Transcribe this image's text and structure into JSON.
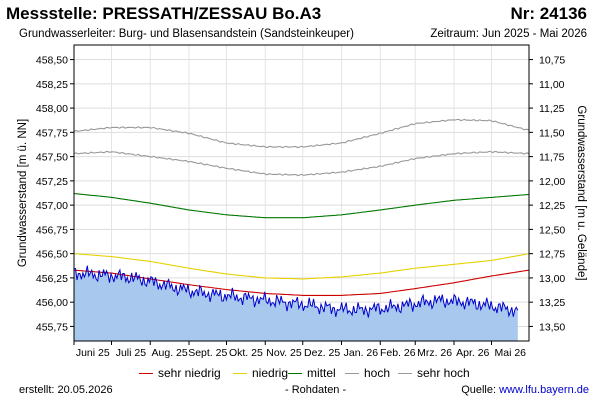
{
  "header": {
    "title": "Messstelle: PRESSATH/ZESSAU Bo.A3",
    "station_nr": "Nr: 24136",
    "aquifer": "Grundwasserleiter:   Burg- und Blasensandstein (Sandsteinkeuper)",
    "period": "Zeitraum: Jun 2025 - Mai 2026"
  },
  "colors": {
    "sehr_niedrig": "#cc0000",
    "niedrig": "#e6d200",
    "mittel": "#007700",
    "hoch": "#999999",
    "sehr_hoch": "#999999",
    "rohdaten": "#0000cc",
    "rohdaten_fill": "#a8c8ee"
  },
  "chart_data": {
    "type": "line",
    "ylabel": "Grundwasserstand [m ü. NN]",
    "ylabel_right": "Grundwasserstand [m u. Gelände]",
    "ylim": [
      455.6,
      458.65
    ],
    "yticks": [
      "458,50",
      "458,25",
      "458,00",
      "457,75",
      "457,50",
      "457,25",
      "457,00",
      "456,75",
      "456,50",
      "456,25",
      "456,00",
      "455,75"
    ],
    "ylim_right": [
      13.65,
      10.6
    ],
    "yticks_right": [
      "10,75",
      "11,00",
      "11,25",
      "11,50",
      "11,75",
      "12,00",
      "12,25",
      "12,50",
      "12,75",
      "13,00",
      "13,25",
      "13,50"
    ],
    "xlabels": [
      "Juni 25",
      "Juli 25",
      "Aug. 25",
      "Sept. 25",
      "Okt. 25",
      "Nov. 25",
      "Dez. 25",
      "Jan. 26",
      "Feb. 26",
      "Mrz. 26",
      "Apr. 26",
      "Mai 26"
    ],
    "x": [
      "2025-06-01",
      "2025-07-01",
      "2025-08-01",
      "2025-09-01",
      "2025-10-01",
      "2025-11-01",
      "2025-12-01",
      "2026-01-01",
      "2026-02-01",
      "2026-03-01",
      "2026-04-01",
      "2026-05-01",
      "2026-05-31"
    ],
    "series": [
      {
        "name": "sehr hoch",
        "key": "sehr_hoch",
        "values": [
          457.76,
          457.8,
          457.8,
          457.74,
          457.64,
          457.6,
          457.6,
          457.64,
          457.74,
          457.84,
          457.88,
          457.87,
          457.77
        ]
      },
      {
        "name": "hoch",
        "key": "hoch",
        "values": [
          457.53,
          457.55,
          457.5,
          457.45,
          457.38,
          457.32,
          457.31,
          457.34,
          457.4,
          457.48,
          457.53,
          457.55,
          457.53
        ]
      },
      {
        "name": "mittel",
        "key": "mittel",
        "values": [
          457.12,
          457.08,
          457.02,
          456.95,
          456.9,
          456.87,
          456.87,
          456.9,
          456.95,
          457.0,
          457.05,
          457.08,
          457.11
        ]
      },
      {
        "name": "niedrig",
        "key": "niedrig",
        "values": [
          456.5,
          456.47,
          456.42,
          456.35,
          456.29,
          456.25,
          456.24,
          456.26,
          456.3,
          456.35,
          456.39,
          456.43,
          456.5
        ]
      },
      {
        "name": "sehr niedrig",
        "key": "sehr_niedrig",
        "values": [
          456.33,
          456.3,
          456.24,
          456.18,
          456.13,
          456.09,
          456.07,
          456.07,
          456.09,
          456.14,
          456.2,
          456.27,
          456.33
        ]
      }
    ],
    "raw_series": {
      "name": "Rohdaten",
      "key": "rohdaten",
      "values": [
        456.3,
        456.28,
        456.26,
        456.21,
        456.14,
        456.09,
        456.06,
        456.03,
        456.0,
        455.97,
        455.93,
        455.92,
        455.94,
        455.98,
        456.02,
        456.0,
        455.96,
        455.91
      ]
    },
    "grid": true,
    "legend_position": "bottom"
  },
  "legend": [
    {
      "label": "sehr niedrig",
      "key": "sehr_niedrig"
    },
    {
      "label": "niedrig",
      "key": "niedrig"
    },
    {
      "label": "mittel",
      "key": "mittel"
    },
    {
      "label": "hoch",
      "key": "hoch"
    },
    {
      "label": "sehr hoch",
      "key": "sehr_hoch"
    }
  ],
  "footer": {
    "created": "erstellt:   20.05.2026",
    "raw_label": "- Rohdaten -",
    "source_prefix": "Quelle: ",
    "source_url": "www.lfu.bayern.de"
  }
}
